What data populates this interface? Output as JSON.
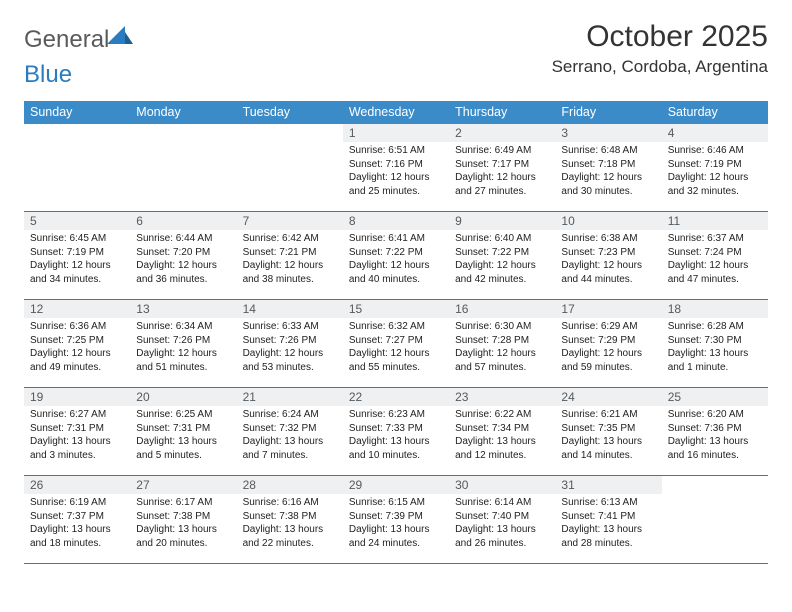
{
  "brand": {
    "general": "General",
    "blue": "Blue"
  },
  "title": {
    "month": "October 2025",
    "location": "Serrano, Cordoba, Argentina"
  },
  "colors": {
    "header_bg": "#3b8bc9",
    "header_text": "#ffffff",
    "daynum_bg": "#eef0f2",
    "daynum_text": "#575a5c",
    "cell_border": "#2a7bbf",
    "body_text": "#222222",
    "logo_gray": "#5a5a5a",
    "logo_blue": "#2a7bbf",
    "page_bg": "#ffffff"
  },
  "typography": {
    "month_fontsize": 30,
    "location_fontsize": 17,
    "header_fontsize": 12.5,
    "daynum_fontsize": 12,
    "cell_fontsize": 10
  },
  "weekdays": [
    "Sunday",
    "Monday",
    "Tuesday",
    "Wednesday",
    "Thursday",
    "Friday",
    "Saturday"
  ],
  "weeks": [
    [
      {
        "day": "",
        "lines": []
      },
      {
        "day": "",
        "lines": []
      },
      {
        "day": "",
        "lines": []
      },
      {
        "day": "1",
        "lines": [
          "Sunrise: 6:51 AM",
          "Sunset: 7:16 PM",
          "Daylight: 12 hours",
          "and 25 minutes."
        ]
      },
      {
        "day": "2",
        "lines": [
          "Sunrise: 6:49 AM",
          "Sunset: 7:17 PM",
          "Daylight: 12 hours",
          "and 27 minutes."
        ]
      },
      {
        "day": "3",
        "lines": [
          "Sunrise: 6:48 AM",
          "Sunset: 7:18 PM",
          "Daylight: 12 hours",
          "and 30 minutes."
        ]
      },
      {
        "day": "4",
        "lines": [
          "Sunrise: 6:46 AM",
          "Sunset: 7:19 PM",
          "Daylight: 12 hours",
          "and 32 minutes."
        ]
      }
    ],
    [
      {
        "day": "5",
        "lines": [
          "Sunrise: 6:45 AM",
          "Sunset: 7:19 PM",
          "Daylight: 12 hours",
          "and 34 minutes."
        ]
      },
      {
        "day": "6",
        "lines": [
          "Sunrise: 6:44 AM",
          "Sunset: 7:20 PM",
          "Daylight: 12 hours",
          "and 36 minutes."
        ]
      },
      {
        "day": "7",
        "lines": [
          "Sunrise: 6:42 AM",
          "Sunset: 7:21 PM",
          "Daylight: 12 hours",
          "and 38 minutes."
        ]
      },
      {
        "day": "8",
        "lines": [
          "Sunrise: 6:41 AM",
          "Sunset: 7:22 PM",
          "Daylight: 12 hours",
          "and 40 minutes."
        ]
      },
      {
        "day": "9",
        "lines": [
          "Sunrise: 6:40 AM",
          "Sunset: 7:22 PM",
          "Daylight: 12 hours",
          "and 42 minutes."
        ]
      },
      {
        "day": "10",
        "lines": [
          "Sunrise: 6:38 AM",
          "Sunset: 7:23 PM",
          "Daylight: 12 hours",
          "and 44 minutes."
        ]
      },
      {
        "day": "11",
        "lines": [
          "Sunrise: 6:37 AM",
          "Sunset: 7:24 PM",
          "Daylight: 12 hours",
          "and 47 minutes."
        ]
      }
    ],
    [
      {
        "day": "12",
        "lines": [
          "Sunrise: 6:36 AM",
          "Sunset: 7:25 PM",
          "Daylight: 12 hours",
          "and 49 minutes."
        ]
      },
      {
        "day": "13",
        "lines": [
          "Sunrise: 6:34 AM",
          "Sunset: 7:26 PM",
          "Daylight: 12 hours",
          "and 51 minutes."
        ]
      },
      {
        "day": "14",
        "lines": [
          "Sunrise: 6:33 AM",
          "Sunset: 7:26 PM",
          "Daylight: 12 hours",
          "and 53 minutes."
        ]
      },
      {
        "day": "15",
        "lines": [
          "Sunrise: 6:32 AM",
          "Sunset: 7:27 PM",
          "Daylight: 12 hours",
          "and 55 minutes."
        ]
      },
      {
        "day": "16",
        "lines": [
          "Sunrise: 6:30 AM",
          "Sunset: 7:28 PM",
          "Daylight: 12 hours",
          "and 57 minutes."
        ]
      },
      {
        "day": "17",
        "lines": [
          "Sunrise: 6:29 AM",
          "Sunset: 7:29 PM",
          "Daylight: 12 hours",
          "and 59 minutes."
        ]
      },
      {
        "day": "18",
        "lines": [
          "Sunrise: 6:28 AM",
          "Sunset: 7:30 PM",
          "Daylight: 13 hours",
          "and 1 minute."
        ]
      }
    ],
    [
      {
        "day": "19",
        "lines": [
          "Sunrise: 6:27 AM",
          "Sunset: 7:31 PM",
          "Daylight: 13 hours",
          "and 3 minutes."
        ]
      },
      {
        "day": "20",
        "lines": [
          "Sunrise: 6:25 AM",
          "Sunset: 7:31 PM",
          "Daylight: 13 hours",
          "and 5 minutes."
        ]
      },
      {
        "day": "21",
        "lines": [
          "Sunrise: 6:24 AM",
          "Sunset: 7:32 PM",
          "Daylight: 13 hours",
          "and 7 minutes."
        ]
      },
      {
        "day": "22",
        "lines": [
          "Sunrise: 6:23 AM",
          "Sunset: 7:33 PM",
          "Daylight: 13 hours",
          "and 10 minutes."
        ]
      },
      {
        "day": "23",
        "lines": [
          "Sunrise: 6:22 AM",
          "Sunset: 7:34 PM",
          "Daylight: 13 hours",
          "and 12 minutes."
        ]
      },
      {
        "day": "24",
        "lines": [
          "Sunrise: 6:21 AM",
          "Sunset: 7:35 PM",
          "Daylight: 13 hours",
          "and 14 minutes."
        ]
      },
      {
        "day": "25",
        "lines": [
          "Sunrise: 6:20 AM",
          "Sunset: 7:36 PM",
          "Daylight: 13 hours",
          "and 16 minutes."
        ]
      }
    ],
    [
      {
        "day": "26",
        "lines": [
          "Sunrise: 6:19 AM",
          "Sunset: 7:37 PM",
          "Daylight: 13 hours",
          "and 18 minutes."
        ]
      },
      {
        "day": "27",
        "lines": [
          "Sunrise: 6:17 AM",
          "Sunset: 7:38 PM",
          "Daylight: 13 hours",
          "and 20 minutes."
        ]
      },
      {
        "day": "28",
        "lines": [
          "Sunrise: 6:16 AM",
          "Sunset: 7:38 PM",
          "Daylight: 13 hours",
          "and 22 minutes."
        ]
      },
      {
        "day": "29",
        "lines": [
          "Sunrise: 6:15 AM",
          "Sunset: 7:39 PM",
          "Daylight: 13 hours",
          "and 24 minutes."
        ]
      },
      {
        "day": "30",
        "lines": [
          "Sunrise: 6:14 AM",
          "Sunset: 7:40 PM",
          "Daylight: 13 hours",
          "and 26 minutes."
        ]
      },
      {
        "day": "31",
        "lines": [
          "Sunrise: 6:13 AM",
          "Sunset: 7:41 PM",
          "Daylight: 13 hours",
          "and 28 minutes."
        ]
      },
      {
        "day": "",
        "lines": []
      }
    ]
  ]
}
